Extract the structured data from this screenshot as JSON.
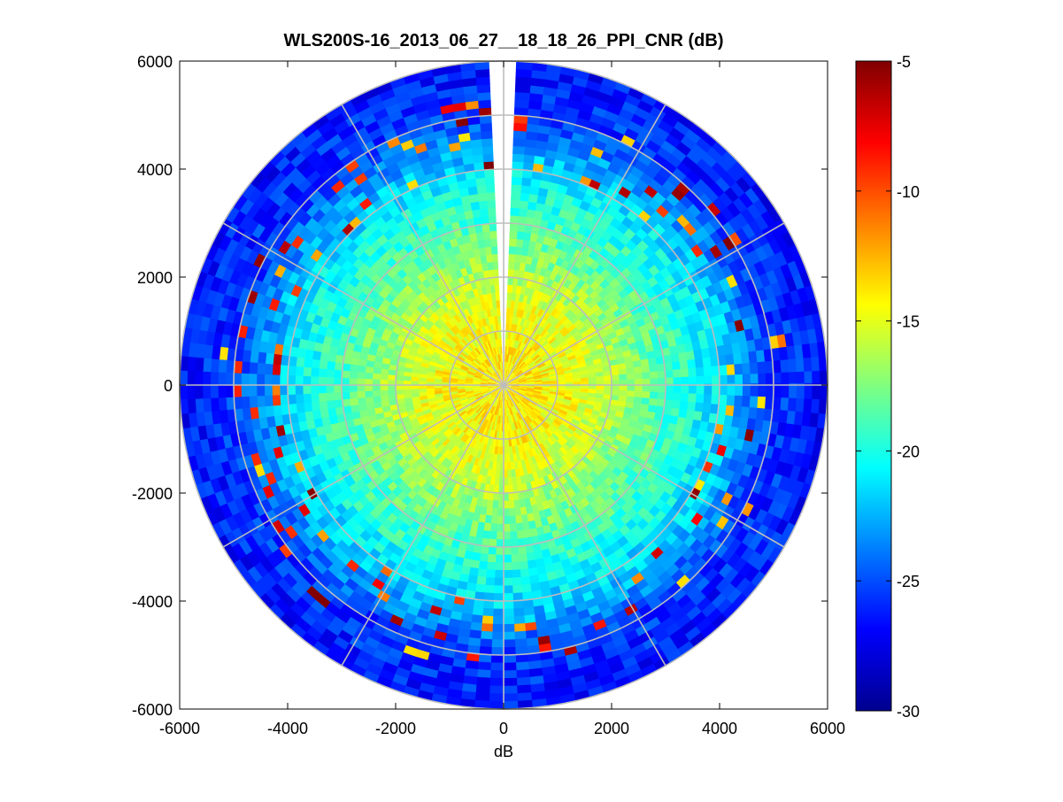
{
  "chart_data": {
    "type": "heatmap",
    "subtype": "polar-ppi",
    "title": "WLS200S-16_2013_06_27__18_18_26_PPI_CNR (dB)",
    "xlabel": "dB",
    "ylabel": "",
    "xlim": [
      -6000,
      6000
    ],
    "ylim": [
      -6000,
      6000
    ],
    "xticks": [
      -6000,
      -4000,
      -2000,
      0,
      2000,
      4000,
      6000
    ],
    "yticks": [
      6000,
      4000,
      2000,
      0,
      -2000,
      -4000,
      -6000
    ],
    "xtick_labels": [
      "-6000",
      "-4000",
      "-2000",
      "0",
      "2000",
      "4000",
      "6000"
    ],
    "ytick_labels": [
      "6000",
      "4000",
      "2000",
      "0",
      "-2000",
      "-4000",
      "-6000"
    ],
    "max_range": 6000,
    "range_rings": [
      1000,
      2000,
      3000,
      4000,
      5000,
      6000
    ],
    "spoke_angles_deg": [
      0,
      30,
      60,
      90,
      120,
      150,
      180,
      210,
      240,
      270,
      300,
      330
    ],
    "missing_sector_deg": [
      88,
      92
    ],
    "colorbar": {
      "colormap": "jet",
      "clim": [
        -30,
        -5
      ],
      "ticks": [
        -5,
        -10,
        -15,
        -20,
        -25,
        -30
      ],
      "tick_labels": [
        "-5",
        "-10",
        "-15",
        "-20",
        "-25",
        "-30"
      ]
    },
    "cnr_profile": [
      {
        "range": 500,
        "cnr": -14
      },
      {
        "range": 1500,
        "cnr": -15
      },
      {
        "range": 2500,
        "cnr": -17.5
      },
      {
        "range": 3500,
        "cnr": -20
      },
      {
        "range": 4200,
        "cnr": -22
      },
      {
        "range": 5000,
        "cnr": -25.5
      },
      {
        "range": 6000,
        "cnr": -26.5
      }
    ],
    "high_cnr_band_range": [
      4000,
      5300
    ]
  }
}
